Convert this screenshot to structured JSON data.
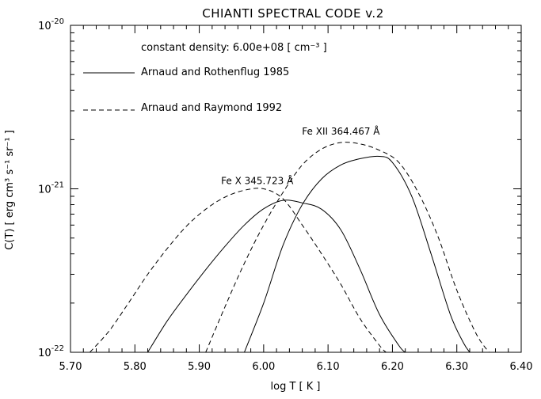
{
  "chart_data": {
    "type": "line",
    "title": "CHIANTI SPECTRAL CODE v.2",
    "xlabel": "log T [ K ]",
    "ylabel": "C(T) [ erg cm³ s⁻¹ sr⁻¹ ]",
    "xlim": [
      5.7,
      6.4
    ],
    "ylim": [
      1e-22,
      1e-20
    ],
    "yscale": "log",
    "x_ticks": [
      "5.70",
      "5.80",
      "5.90",
      "6.00",
      "6.10",
      "6.20",
      "6.30",
      "6.40"
    ],
    "x_tick_values": [
      5.7,
      5.8,
      5.9,
      6.0,
      6.1,
      6.2,
      6.3,
      6.4
    ],
    "y_ticks": [
      {
        "base": "10",
        "exp": "-20",
        "value": 1e-20
      },
      {
        "base": "10",
        "exp": "-21",
        "value": 1e-21
      },
      {
        "base": "10",
        "exp": "-22",
        "value": 1e-22
      }
    ],
    "density_label": "constant density: 6.00e+08 [ cm⁻³ ]",
    "legend": [
      {
        "label": "Arnaud and Rothenflug 1985",
        "style": "solid"
      },
      {
        "label": "Arnaud and Raymond 1992",
        "style": "dashed"
      }
    ],
    "annotations": [
      {
        "text": "Fe X 345.723 Å",
        "x": 5.99,
        "y": 1.07e-21
      },
      {
        "text": "Fe XII 364.467 Å",
        "x": 6.12,
        "y": 2.15e-21
      }
    ],
    "series": [
      {
        "ion": "Fe X",
        "dataset": "Arnaud and Rothenflug 1985",
        "style": "solid",
        "x": [
          5.82,
          5.85,
          5.88,
          5.91,
          5.94,
          5.97,
          6.0,
          6.03,
          6.06,
          6.09,
          6.12,
          6.15,
          6.18,
          6.21,
          6.22
        ],
        "y": [
          1e-22,
          1.55e-22,
          2.25e-22,
          3.2e-22,
          4.45e-22,
          6e-22,
          7.55e-22,
          8.5e-22,
          8.2e-22,
          7.5e-22,
          5.6e-22,
          3.2e-22,
          1.7e-22,
          1.1e-22,
          1e-22
        ]
      },
      {
        "ion": "Fe XII",
        "dataset": "Arnaud and Rothenflug 1985",
        "style": "solid",
        "x": [
          5.97,
          6.0,
          6.03,
          6.06,
          6.09,
          6.12,
          6.15,
          6.18,
          6.2,
          6.23,
          6.26,
          6.29,
          6.31,
          6.32
        ],
        "y": [
          1e-22,
          2e-22,
          4.5e-22,
          8e-22,
          1.15e-21,
          1.4e-21,
          1.53e-21,
          1.58e-21,
          1.45e-21,
          9e-22,
          4e-22,
          1.7e-22,
          1.15e-22,
          1e-22
        ]
      },
      {
        "ion": "Fe X",
        "dataset": "Arnaud and Raymond 1992",
        "style": "dashed",
        "x": [
          5.73,
          5.76,
          5.79,
          5.82,
          5.85,
          5.88,
          5.91,
          5.94,
          5.97,
          6.0,
          6.03,
          6.06,
          6.09,
          6.12,
          6.15,
          6.18,
          6.19
        ],
        "y": [
          1e-22,
          1.35e-22,
          2e-22,
          3e-22,
          4.3e-22,
          5.9e-22,
          7.5e-22,
          8.9e-22,
          9.8e-22,
          1e-21,
          8.7e-22,
          6e-22,
          4e-22,
          2.6e-22,
          1.6e-22,
          1.1e-22,
          1e-22
        ]
      },
      {
        "ion": "Fe XII",
        "dataset": "Arnaud and Raymond 1992",
        "style": "dashed",
        "x": [
          5.91,
          5.94,
          5.97,
          6.0,
          6.03,
          6.06,
          6.09,
          6.12,
          6.15,
          6.18,
          6.21,
          6.24,
          6.27,
          6.3,
          6.33,
          6.35
        ],
        "y": [
          1e-22,
          1.9e-22,
          3.5e-22,
          6e-22,
          9.5e-22,
          1.4e-21,
          1.75e-21,
          1.92e-21,
          1.88e-21,
          1.72e-21,
          1.45e-21,
          9.5e-22,
          5.2e-22,
          2.4e-22,
          1.3e-22,
          1e-22
        ]
      }
    ]
  }
}
